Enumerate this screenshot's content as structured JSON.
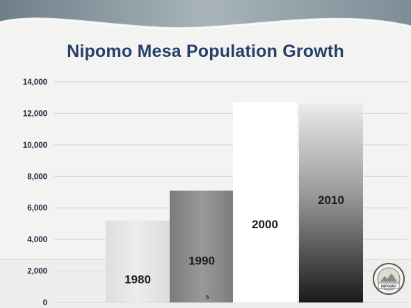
{
  "chart_data": {
    "type": "bar",
    "title": "Nipomo Mesa Population Growth",
    "categories": [
      "1980",
      "1990",
      "2000",
      "2010"
    ],
    "values": [
      5200,
      7100,
      12700,
      12600
    ],
    "ylim": [
      0,
      14000
    ],
    "yticks": [
      0,
      2000,
      4000,
      6000,
      8000,
      10000,
      12000,
      14000
    ],
    "ytick_labels": [
      "0",
      "2,000",
      "4,000",
      "6,000",
      "8,000",
      "10,000",
      "12,000",
      "14,000"
    ],
    "xlabel": "",
    "ylabel": "",
    "grid": true,
    "legend": "none",
    "data_labels": "category names inside bars"
  },
  "slide": {
    "page_number": "5",
    "seal_text": "NIPOMO"
  },
  "colors": {
    "title": "#24406a",
    "banner": "#8f9fa8",
    "background": "#f3f3f1",
    "bar_1980": "#e6e6e6",
    "bar_1990": "#8a8a8a",
    "bar_2000": "#ffffff",
    "bar_2010_top": "#e6e6e6",
    "bar_2010_bottom": "#1e1e1e"
  }
}
